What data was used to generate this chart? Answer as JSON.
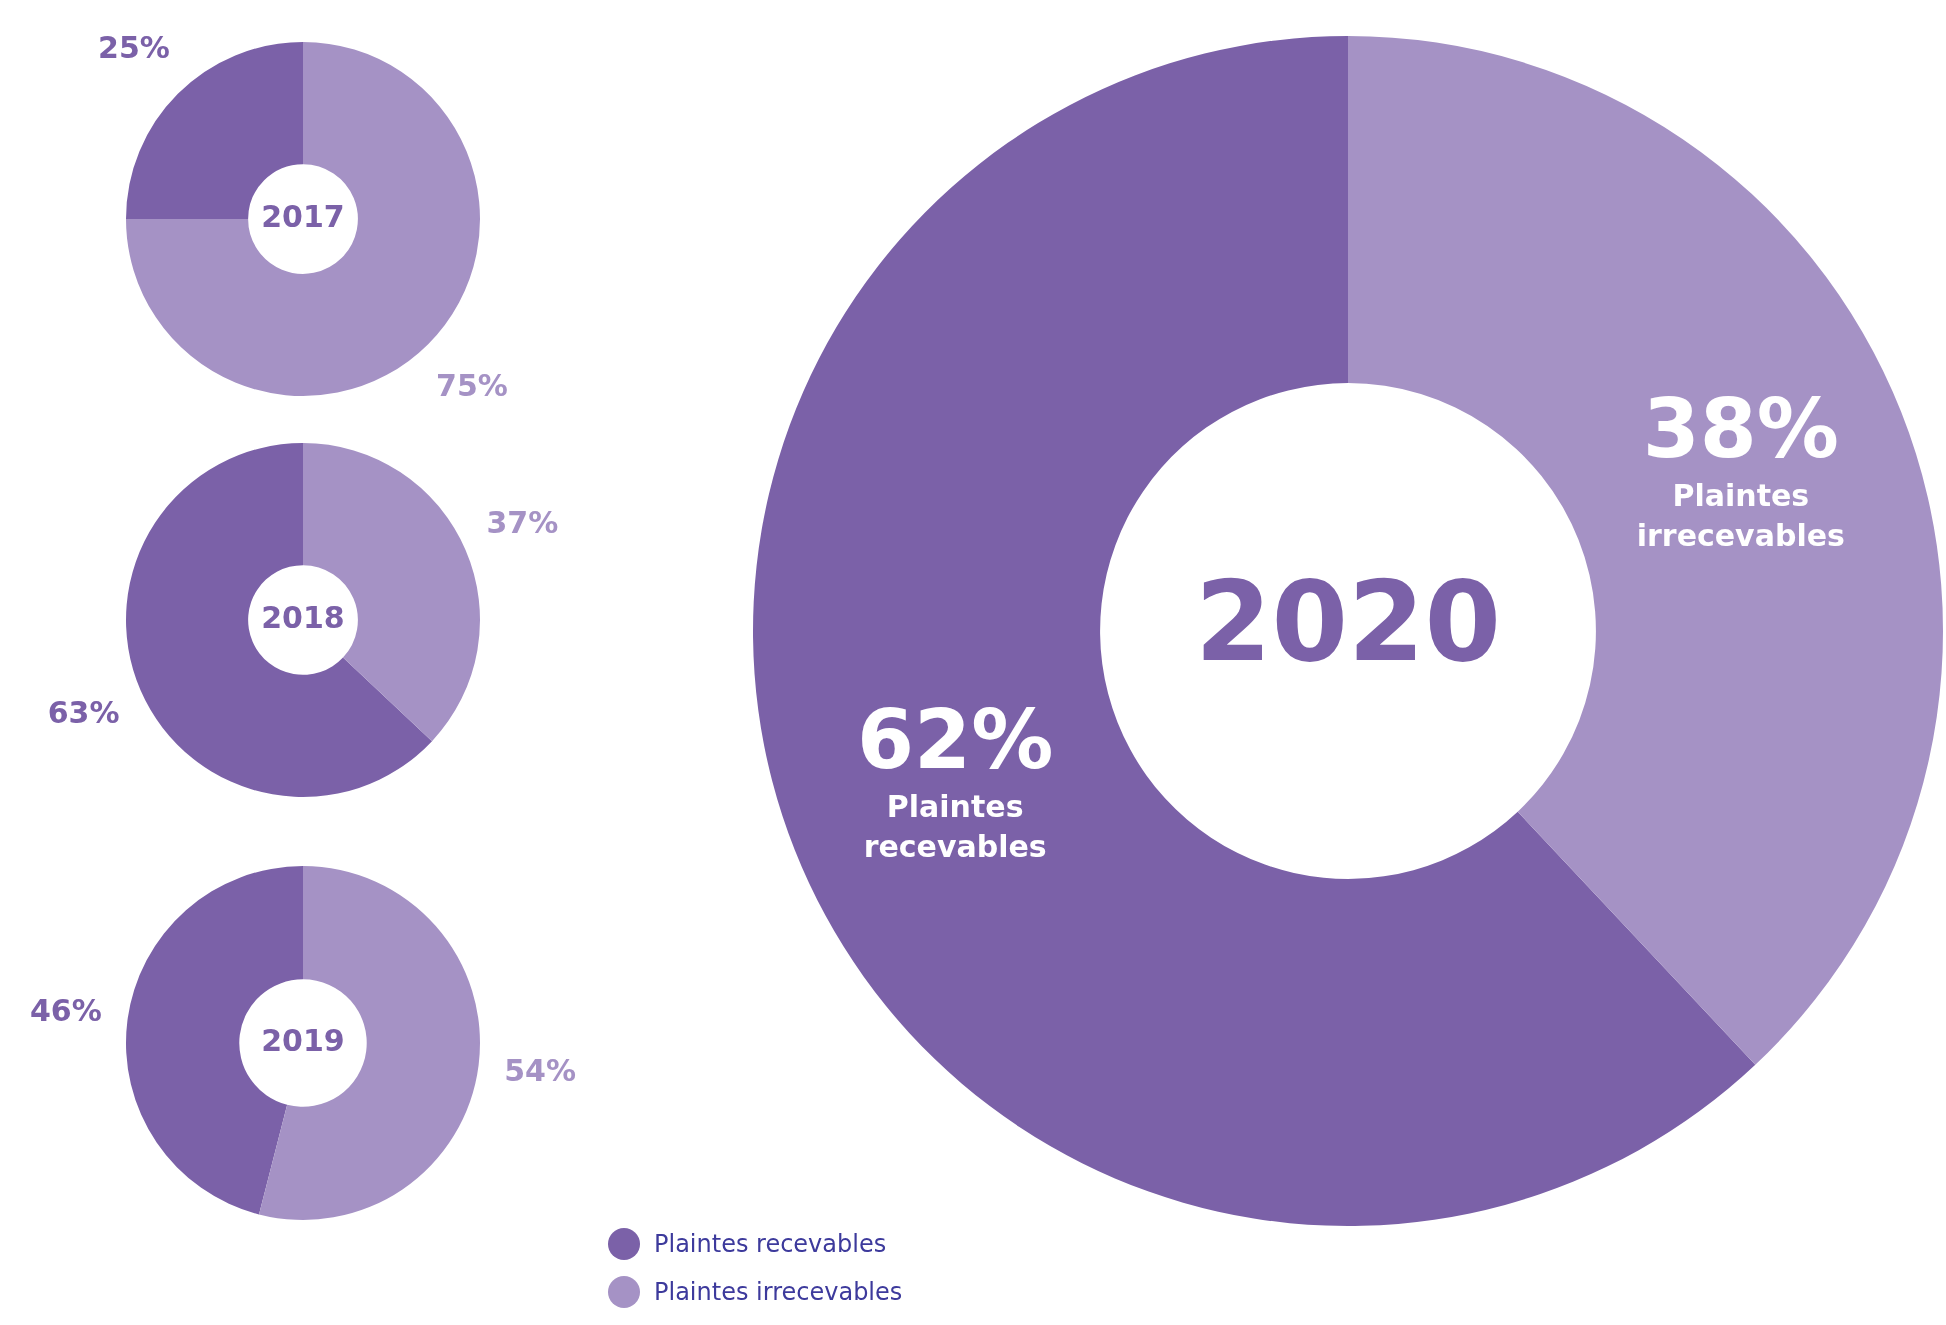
{
  "chart_data": [
    {
      "type": "donut",
      "title": "2017",
      "categories": [
        "Plaintes recevables",
        "Plaintes irrecevables"
      ],
      "values": [
        25,
        75
      ],
      "colors": [
        "#7b61a8",
        "#a592c5"
      ],
      "value_labels": [
        "25%",
        "75%"
      ],
      "legend": "bottom right"
    },
    {
      "type": "donut",
      "title": "2018",
      "categories": [
        null,
        null
      ],
      "values": [
        63,
        37
      ],
      "colors": [
        "#7b61a8",
        "#a592c5"
      ],
      "value_labels": [
        "63%",
        "37%"
      ]
    },
    {
      "type": "donut",
      "title": "2019",
      "categories": [
        null,
        null
      ],
      "values": [
        46,
        54
      ],
      "colors": [
        "#7b61a8",
        "#a592c5"
      ],
      "value_labels": [
        "46%",
        "54%"
      ]
    },
    {
      "type": "donut",
      "title": "2020",
      "categories": [
        "Plaintes recevables",
        "Plaintes irrecevables"
      ],
      "values": [
        62,
        38
      ],
      "colors": [
        "#7b61a8",
        "#a592c5"
      ],
      "value_labels": [
        "62%",
        "38%"
      ]
    }
  ]
}
